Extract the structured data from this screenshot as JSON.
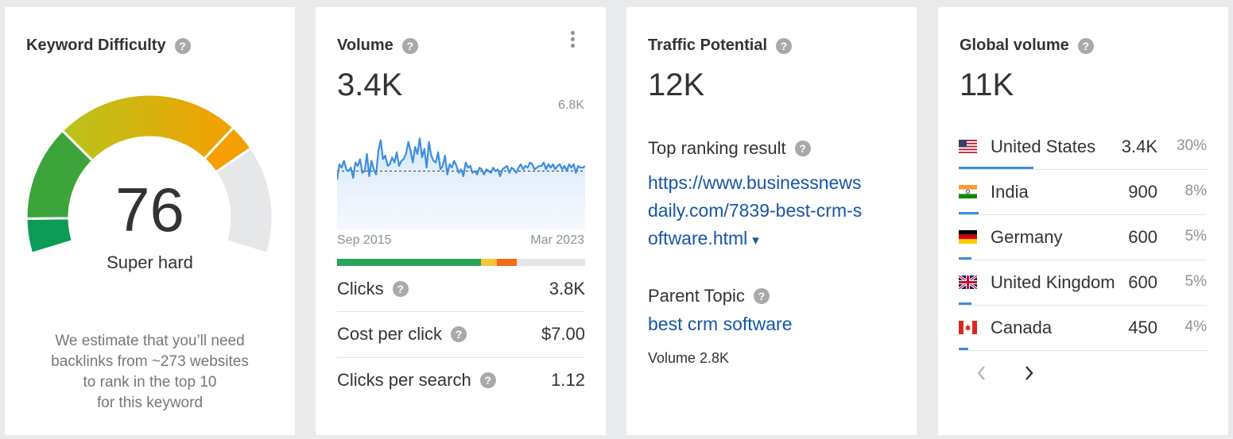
{
  "kd": {
    "title": "Keyword Difficulty",
    "help": "?",
    "score": "76",
    "rating": "Super hard",
    "estimate_lines": [
      "We estimate that you’ll need",
      "backlinks from ~273 websites",
      "to rank in the top 10",
      "for this keyword"
    ],
    "score_value": 76,
    "colors": {
      "green_dark": "#0d9c57",
      "green": "#3ca43a",
      "yellow_green": "#b8c41c",
      "yellow": "#f2b900",
      "orange": "#f5a000",
      "grey": "#e6e7e8"
    }
  },
  "volume": {
    "title": "Volume",
    "help": "?",
    "value": "3.4K",
    "chart_max_label": "6.8K",
    "start_label": "Sep 2015",
    "end_label": "Mar 2023",
    "serp_bar": [
      {
        "color": "#29a35a",
        "share": 0.58
      },
      {
        "color": "#f5c533",
        "share": 0.065
      },
      {
        "color": "#f26a1b",
        "share": 0.08
      },
      {
        "color": "#e4e5e6",
        "share": 0.275
      }
    ],
    "metrics": [
      {
        "label": "Clicks",
        "value": "3.8K"
      },
      {
        "label": "Cost per click",
        "value": "$7.00"
      },
      {
        "label": "Clicks per search",
        "value": "1.12"
      }
    ]
  },
  "chart_data": {
    "type": "line",
    "title": "",
    "xlabel": "",
    "ylabel": "",
    "x_start": "Sep 2015",
    "x_end": "Mar 2023",
    "ylim": [
      0,
      6800
    ],
    "average": 3400,
    "line_color": "#3d8de0",
    "series": [
      {
        "values": [
          2900,
          3800,
          3600,
          4000,
          3500,
          3400,
          3600,
          3000,
          3900,
          3700,
          4100,
          3300,
          3400,
          4400,
          3100,
          4000,
          3500,
          3200,
          4600,
          5200,
          4100,
          4300,
          3700,
          3800,
          4200,
          3900,
          4500,
          3700,
          4000,
          4100,
          4400,
          5100,
          4600,
          3900,
          4800,
          4400,
          5300,
          4200,
          4700,
          3600,
          5100,
          4300,
          4000,
          3900,
          4500,
          3500,
          3700,
          4300,
          3200,
          3800,
          3600,
          4000,
          3700,
          3300,
          3500,
          3100,
          3900,
          3600,
          3700,
          3300,
          3400,
          3200,
          3600,
          3500,
          3200,
          3500,
          3400,
          3300,
          3600,
          3400,
          3500,
          3100,
          3500,
          3600,
          3700,
          3300,
          3600,
          3500,
          3300,
          3600,
          3800,
          3500,
          3700,
          3600,
          3900,
          3800,
          3500,
          3600,
          3700,
          3700,
          3900,
          3500,
          3800,
          3600,
          3800,
          3500,
          3700,
          3800,
          3500,
          3700,
          3400,
          3800,
          3600,
          3800,
          3300,
          3700,
          3600,
          3600,
          3700
        ]
      }
    ]
  },
  "traffic": {
    "title": "Traffic Potential",
    "help": "?",
    "value": "12K",
    "top_ranking_label": "Top ranking result",
    "url_lines": [
      "https://www.businessnews",
      "daily.com/7839-best-crm-s",
      "oftware.html"
    ],
    "dropdown_glyph": "▾",
    "parent_topic_label": "Parent Topic",
    "parent_topic": "best crm software",
    "parent_volume": "Volume 2.8K"
  },
  "global": {
    "title": "Global volume",
    "help": "?",
    "value": "11K",
    "countries": [
      {
        "name": "United States",
        "volume": "3.4K",
        "pct": "30%",
        "share": 0.3,
        "flag": "us-flag"
      },
      {
        "name": "India",
        "volume": "900",
        "pct": "8%",
        "share": 0.08,
        "flag": "in-flag"
      },
      {
        "name": "Germany",
        "volume": "600",
        "pct": "5%",
        "share": 0.05,
        "flag": "de-flag"
      },
      {
        "name": "United Kingdom",
        "volume": "600",
        "pct": "5%",
        "share": 0.05,
        "flag": "gb-flag"
      },
      {
        "name": "Canada",
        "volume": "450",
        "pct": "4%",
        "share": 0.04,
        "flag": "ca-flag"
      }
    ],
    "prev_glyph": "‹",
    "next_glyph": "›"
  }
}
